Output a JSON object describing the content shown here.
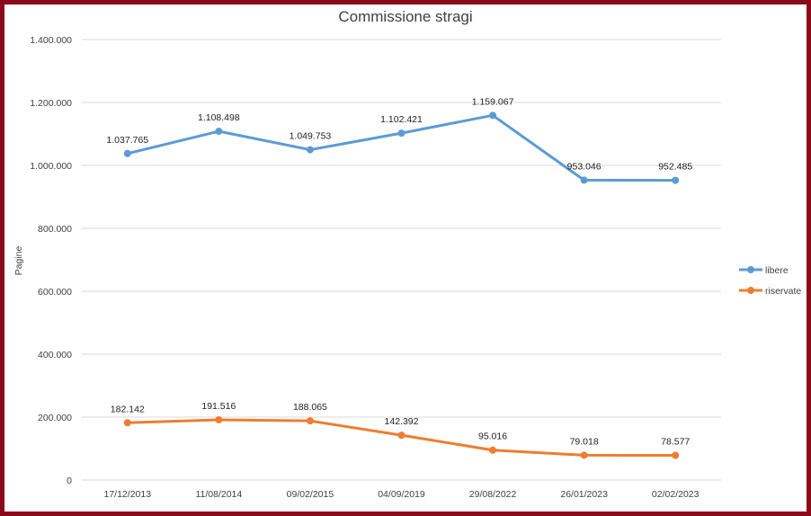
{
  "chart_data": {
    "type": "line",
    "title": "Commissione stragi",
    "ylabel": "Pagine",
    "xlabel": "",
    "categories": [
      "17/12/2013",
      "11/08/2014",
      "09/02/2015",
      "04/09/2019",
      "29/08/2022",
      "26/01/2023",
      "02/02/2023"
    ],
    "ylim": [
      0,
      1400000
    ],
    "yticks": [
      0,
      200000,
      400000,
      600000,
      800000,
      1000000,
      1200000,
      1400000
    ],
    "ytick_labels": [
      "0",
      "200.000",
      "400.000",
      "600.000",
      "800.000",
      "1.000.000",
      "1.200.000",
      "1.400.000"
    ],
    "grid": true,
    "legend_position": "right",
    "series": [
      {
        "name": "libere",
        "color": "#5B9BD5",
        "values": [
          1037765,
          1108498,
          1049753,
          1102421,
          1159067,
          953046,
          952485
        ],
        "labels": [
          "1.037.765",
          "1.108.498",
          "1.049.753",
          "1.102.421",
          "1.159.067",
          "953.046",
          "952.485"
        ]
      },
      {
        "name": "riservate",
        "color": "#ED7D31",
        "values": [
          182142,
          191516,
          188065,
          142392,
          95016,
          79018,
          78577
        ],
        "labels": [
          "182.142",
          "191.516",
          "188.065",
          "142.392",
          "95.016",
          "79.018",
          "78.577"
        ]
      }
    ]
  }
}
